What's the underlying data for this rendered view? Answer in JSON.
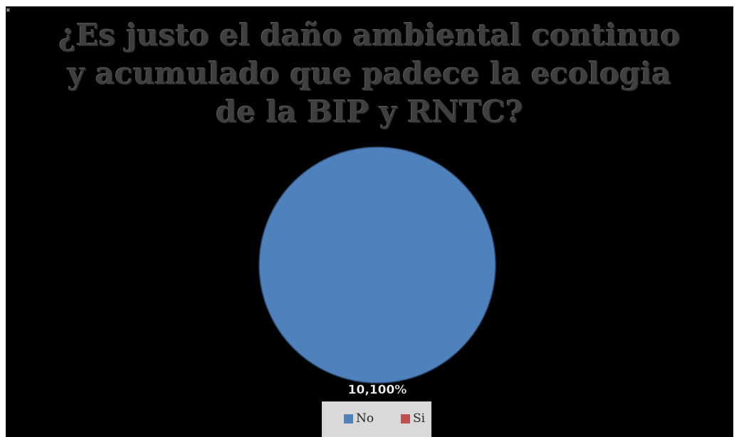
{
  "chart_data": {
    "type": "pie",
    "title": "¿Es justo el daño ambiental continuo y acumulado que padece la ecologia de la BIP y RNTC?",
    "title_lines": [
      "¿Es justo el daño ambiental continuo",
      "y acumulado que padece la ecologia",
      "de la BIP y RNTC?"
    ],
    "categories": [
      "No",
      "Si"
    ],
    "values": [
      100,
      0
    ],
    "data_labels": [
      "10,100%"
    ],
    "colors": [
      "#4f81bd",
      "#c0504d"
    ],
    "legend_position": "bottom"
  }
}
